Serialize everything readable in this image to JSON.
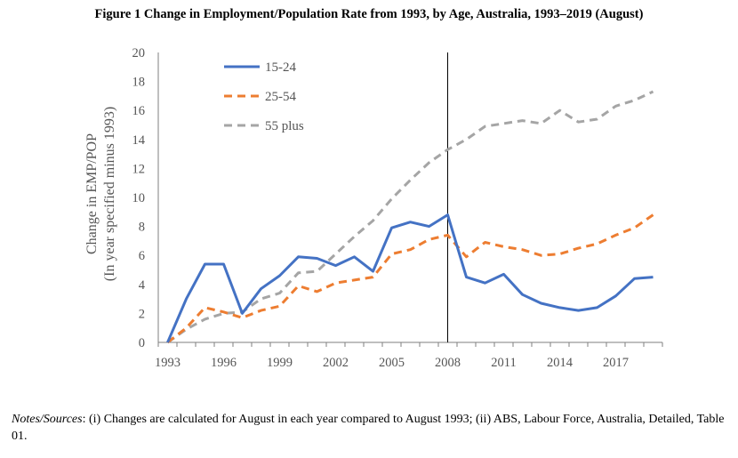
{
  "figure": {
    "title": "Figure 1  Change in Employment/Population Rate from 1993, by Age, Australia, 1993–2019 (August)",
    "notes_label": "Notes/Sources",
    "notes_text": ": (i) Changes are calculated for August in each year compared to August 1993; (ii) ABS, Labour Force, Australia, Detailed, Table 01."
  },
  "chart_data": {
    "type": "line",
    "title": "Change in Employment/Population Rate from 1993, by Age, Australia, 1993–2019 (August)",
    "ylabel_line1": "Change in EMP/POP",
    "ylabel_line2": "(In year specified minus 1993)",
    "xlabel": "",
    "ylim": [
      0,
      20
    ],
    "yticks": [
      0,
      2,
      4,
      6,
      8,
      10,
      12,
      14,
      16,
      18,
      20
    ],
    "xticks": [
      1993,
      1996,
      1999,
      2002,
      2005,
      2008,
      2011,
      2014,
      2017
    ],
    "x": [
      1993,
      1994,
      1995,
      1996,
      1997,
      1998,
      1999,
      2000,
      2001,
      2002,
      2003,
      2004,
      2005,
      2006,
      2007,
      2008,
      2009,
      2010,
      2011,
      2012,
      2013,
      2014,
      2015,
      2016,
      2017,
      2018,
      2019
    ],
    "vertical_marker_x": 2008,
    "legend_position": "top-left",
    "series": [
      {
        "name": "15-24",
        "color": "#4472c4",
        "style": "solid",
        "values": [
          0,
          3.0,
          5.4,
          5.4,
          2.0,
          3.7,
          4.6,
          5.9,
          5.8,
          5.3,
          5.9,
          4.9,
          7.9,
          8.3,
          8.0,
          8.8,
          4.5,
          4.1,
          4.7,
          3.3,
          2.7,
          2.4,
          2.2,
          2.4,
          3.2,
          4.4,
          4.5
        ]
      },
      {
        "name": "25-54",
        "color": "#ed7d31",
        "style": "dash",
        "values": [
          0,
          1.0,
          2.4,
          2.1,
          1.7,
          2.2,
          2.5,
          3.9,
          3.5,
          4.1,
          4.3,
          4.5,
          6.1,
          6.4,
          7.1,
          7.4,
          5.9,
          6.9,
          6.6,
          6.4,
          6.0,
          6.1,
          6.5,
          6.8,
          7.4,
          7.9,
          8.8
        ]
      },
      {
        "name": "55 plus",
        "color": "#a5a5a5",
        "style": "dash",
        "values": [
          0,
          0.9,
          1.6,
          2.0,
          2.1,
          3.0,
          3.4,
          4.8,
          4.9,
          6.1,
          7.3,
          8.4,
          9.9,
          11.2,
          12.4,
          13.3,
          14.0,
          14.9,
          15.1,
          15.3,
          15.1,
          16.0,
          15.2,
          15.4,
          16.3,
          16.7,
          17.3
        ]
      }
    ]
  }
}
